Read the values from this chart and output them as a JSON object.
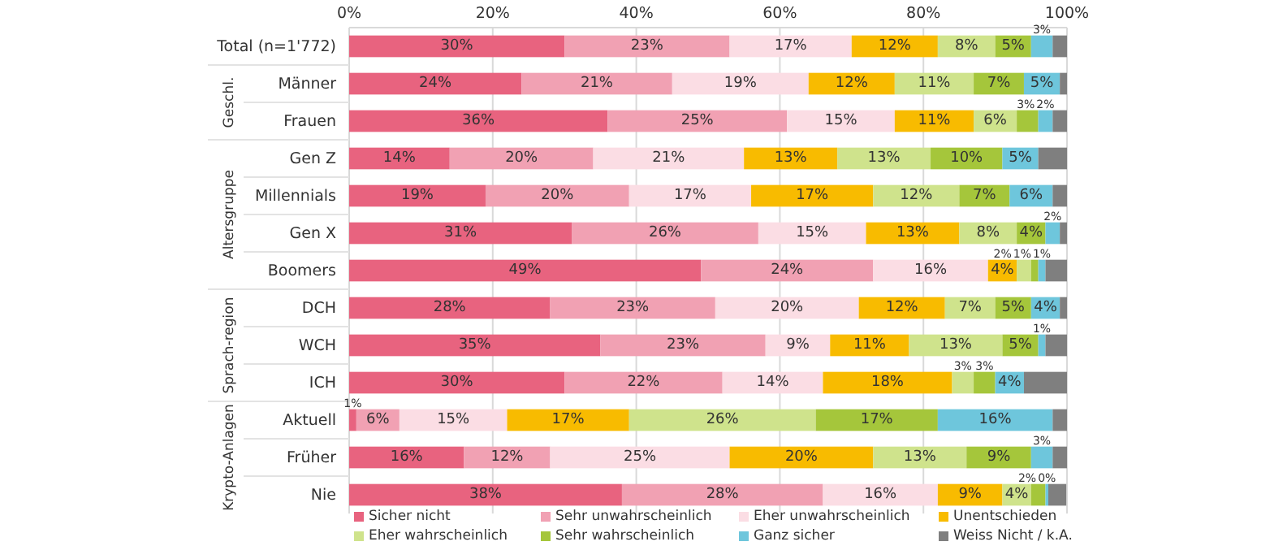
{
  "chart_data": {
    "type": "bar",
    "orientation": "horizontal",
    "stacked": true,
    "categories": [
      "Total (n=1'772)",
      "Männer",
      "Frauen",
      "Gen Z",
      "Millennials",
      "Gen X",
      "Boomers",
      "DCH",
      "WCH",
      "ICH",
      "Aktuell",
      "Früher",
      "Nie"
    ],
    "series": [
      {
        "name": "Sicher nicht",
        "color": "#e8637f",
        "values": [
          30,
          24,
          36,
          14,
          19,
          31,
          49,
          28,
          35,
          30,
          1,
          16,
          38
        ],
        "value_labels": [
          "30%",
          "24%",
          "36%",
          "14%",
          "19%",
          "31%",
          "49%",
          "28%",
          "35%",
          "30%",
          "1%",
          "16%",
          "38%"
        ]
      },
      {
        "name": "Sehr unwahrscheinlich",
        "color": "#f1a1b3",
        "values": [
          23,
          21,
          25,
          20,
          20,
          26,
          24,
          23,
          23,
          22,
          6,
          12,
          28
        ],
        "value_labels": [
          "23%",
          "21%",
          "25%",
          "20%",
          "20%",
          "26%",
          "24%",
          "23%",
          "23%",
          "22%",
          "6%",
          "12%",
          "28%"
        ]
      },
      {
        "name": "Eher unwahrscheinlich",
        "color": "#fbdde4",
        "values": [
          17,
          19,
          15,
          21,
          17,
          15,
          16,
          20,
          9,
          14,
          15,
          25,
          16
        ],
        "value_labels": [
          "17%",
          "19%",
          "15%",
          "21%",
          "17%",
          "15%",
          "16%",
          "20%",
          "9%",
          "14%",
          "15%",
          "25%",
          "16%"
        ]
      },
      {
        "name": "Unentschieden",
        "color": "#f8bb00",
        "values": [
          12,
          12,
          11,
          13,
          17,
          13,
          4,
          12,
          11,
          18,
          17,
          20,
          9
        ],
        "value_labels": [
          "12%",
          "12%",
          "11%",
          "13%",
          "17%",
          "13%",
          "4%",
          "12%",
          "11%",
          "18%",
          "17%",
          "20%",
          "9%"
        ]
      },
      {
        "name": "Eher wahrscheinlich",
        "color": "#cfe38c",
        "values": [
          8,
          11,
          6,
          13,
          12,
          8,
          2,
          7,
          13,
          3,
          26,
          13,
          4
        ],
        "value_labels": [
          "8%",
          "11%",
          "6%",
          "13%",
          "12%",
          "8%",
          "2%",
          "7%",
          "13%",
          "3%",
          "26%",
          "13%",
          "4%"
        ]
      },
      {
        "name": "Sehr wahrscheinlich",
        "color": "#a5c63b",
        "values": [
          5,
          7,
          3,
          10,
          7,
          4,
          1,
          5,
          5,
          3,
          17,
          9,
          2
        ],
        "value_labels": [
          "5%",
          "7%",
          "3%",
          "10%",
          "7%",
          "4%",
          "1%",
          "5%",
          "5%",
          "3%",
          "17%",
          "9%",
          "2%"
        ]
      },
      {
        "name": "Ganz sicher",
        "color": "#6ec6dc",
        "values": [
          3,
          5,
          2,
          5,
          6,
          2,
          1,
          4,
          1,
          4,
          16,
          3,
          0.4
        ],
        "value_labels": [
          "3%",
          "5%",
          "2%",
          "5%",
          "6%",
          "2%",
          "1%",
          "4%",
          "1%",
          "4%",
          "16%",
          "3%",
          "0%"
        ]
      },
      {
        "name": "Weiss Nicht / k.A.",
        "color": "#7f7f7f",
        "values": [
          2,
          1,
          2,
          4,
          2,
          1,
          3,
          1,
          3,
          6,
          2,
          2,
          2.5
        ]
      }
    ],
    "xlim": [
      0,
      100
    ],
    "xticks": [
      {
        "value": 0,
        "label": "0%"
      },
      {
        "value": 20,
        "label": "20%"
      },
      {
        "value": 40,
        "label": "40%"
      },
      {
        "value": 60,
        "label": "60%"
      },
      {
        "value": 80,
        "label": "80%"
      },
      {
        "value": 100,
        "label": "100%"
      }
    ],
    "grid": "x",
    "legend": "bottom",
    "annotations": [
      "Geschl.",
      "Altersgruppe",
      "Sprach-region",
      "Krypto-Anlagen"
    ]
  }
}
